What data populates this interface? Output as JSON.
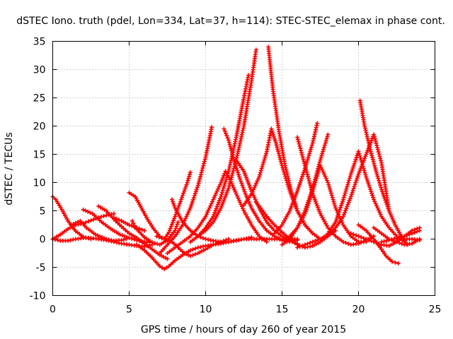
{
  "chart_data": {
    "type": "scatter",
    "title": "dSTEC Iono. truth (pdel, Lon=334, Lat=37, h=114): STEC-STEC_elemax in phase cont.",
    "xlabel": "GPS time / hours of day 260 of year 2015",
    "ylabel": "dSTEC  / TECUs",
    "xlim": [
      0,
      25
    ],
    "ylim": [
      -10,
      35
    ],
    "xticks": [
      0,
      5,
      10,
      15,
      20,
      25
    ],
    "yticks": [
      -10,
      -5,
      0,
      5,
      10,
      15,
      20,
      25,
      30,
      35
    ],
    "grid": true,
    "marker": "+",
    "color": "#ff0000",
    "series": [
      {
        "x": [
          0.0,
          0.2,
          0.6,
          1.0,
          1.5,
          2.0,
          2.5
        ],
        "y": [
          7.5,
          7.0,
          5.2,
          3.2,
          1.4,
          0.4,
          0.0
        ]
      },
      {
        "x": [
          0.0,
          0.5,
          1.0,
          1.5,
          2.0,
          2.5,
          3.0,
          3.5,
          4.0,
          4.5,
          5.0,
          5.5,
          6.0,
          6.5
        ],
        "y": [
          0.0,
          -0.3,
          -0.3,
          0.0,
          0.2,
          0.2,
          0.0,
          -0.2,
          -0.5,
          -0.8,
          -1.0,
          -1.2,
          -1.3,
          -1.0
        ]
      },
      {
        "x": [
          0.0,
          0.5,
          1.0,
          1.5,
          2.0,
          2.5,
          3.0,
          3.5,
          4.0
        ],
        "y": [
          0.0,
          0.8,
          1.8,
          2.5,
          2.8,
          3.3,
          3.8,
          4.2,
          4.5
        ]
      },
      {
        "x": [
          1.2,
          1.8,
          2.2,
          2.8,
          3.5,
          4.0,
          4.5,
          4.8
        ],
        "y": [
          2.5,
          3.2,
          2.0,
          0.8,
          0.0,
          -0.3,
          -0.2,
          0.0
        ]
      },
      {
        "x": [
          2.0,
          2.6,
          3.2,
          3.8,
          4.4,
          5.0,
          5.5,
          6.0,
          6.5
        ],
        "y": [
          5.2,
          4.5,
          3.0,
          1.8,
          0.8,
          0.2,
          -0.2,
          -0.5,
          -0.6
        ]
      },
      {
        "x": [
          3.0,
          3.5,
          4.0,
          4.5,
          5.0,
          5.5,
          6.0,
          6.5,
          7.0,
          7.5
        ],
        "y": [
          5.8,
          5.0,
          3.5,
          2.2,
          1.0,
          0.2,
          -0.8,
          -1.8,
          -2.8,
          -3.5
        ]
      },
      {
        "x": [
          4.0,
          4.5,
          5.0,
          5.5,
          6.0
        ],
        "y": [
          3.8,
          3.2,
          2.5,
          2.0,
          1.5
        ]
      },
      {
        "x": [
          5.2,
          5.4,
          6.0,
          6.5,
          7.0,
          7.5,
          8.0,
          8.2
        ],
        "y": [
          3.2,
          2.0,
          0.3,
          -0.6,
          -1.0,
          -0.2,
          1.5,
          3.0
        ]
      },
      {
        "x": [
          5.0,
          5.4,
          5.8,
          6.2,
          6.6,
          7.0,
          7.3,
          7.6,
          8.0,
          8.4,
          8.8,
          9.0
        ],
        "y": [
          8.2,
          7.5,
          5.5,
          3.5,
          1.8,
          0.5,
          0.0,
          1.2,
          4.0,
          7.0,
          10.0,
          11.8
        ]
      },
      {
        "x": [
          5.5,
          6.0,
          6.5,
          7.0,
          7.3,
          7.6,
          8.0,
          8.5,
          9.0,
          9.5,
          10.0,
          10.5,
          11.0,
          11.5,
          12.0,
          12.5,
          13.0,
          13.5,
          14.0,
          14.5,
          15.0,
          15.5,
          16.0
        ],
        "y": [
          -1.0,
          -2.0,
          -3.3,
          -4.8,
          -5.3,
          -4.8,
          -3.8,
          -2.8,
          -2.0,
          -1.5,
          -1.2,
          -1.0,
          -0.8,
          -0.5,
          -0.2,
          0.0,
          0.0,
          0.0,
          0.0,
          0.0,
          0.0,
          0.0,
          0.0
        ]
      },
      {
        "x": [
          7.0,
          7.5,
          8.0,
          8.5,
          9.0,
          9.5,
          10.0,
          10.4
        ],
        "y": [
          -2.5,
          -1.0,
          0.5,
          2.5,
          5.5,
          9.5,
          14.5,
          19.8
        ]
      },
      {
        "x": [
          7.8,
          8.0,
          8.5,
          9.0,
          9.5,
          10.0,
          10.5,
          11.0,
          11.5,
          12.0,
          12.5,
          13.0
        ],
        "y": [
          7.0,
          5.5,
          3.0,
          1.5,
          0.5,
          0.0,
          -0.3,
          -0.5,
          -0.5,
          -0.3,
          0.0,
          0.3
        ]
      },
      {
        "x": [
          6.8,
          7.3,
          7.8,
          8.2,
          8.6,
          9.0,
          9.5,
          10.0,
          10.5,
          11.0,
          11.5
        ],
        "y": [
          0.5,
          0.0,
          -0.5,
          -1.5,
          -2.5,
          -3.0,
          -2.5,
          -1.8,
          -1.0,
          -0.5,
          0.0
        ]
      },
      {
        "x": [
          7.5,
          8.0,
          8.5,
          9.0,
          9.5,
          10.0,
          10.5,
          11.0,
          11.3,
          11.6,
          12.0,
          12.5,
          13.0,
          13.5,
          14.0
        ],
        "y": [
          -2.5,
          -1.5,
          -0.5,
          0.5,
          2.0,
          4.0,
          7.0,
          10.0,
          12.0,
          10.5,
          8.0,
          5.0,
          2.5,
          0.5,
          -0.5
        ]
      },
      {
        "x": [
          9.0,
          9.5,
          10.0,
          10.5,
          11.0,
          11.5,
          12.0,
          12.5,
          12.8
        ],
        "y": [
          -0.5,
          0.5,
          2.0,
          4.0,
          7.5,
          12.0,
          18.0,
          25.0,
          29.0
        ]
      },
      {
        "x": [
          9.5,
          10.0,
          10.5,
          11.0,
          11.5,
          12.0,
          12.5,
          13.0,
          13.3
        ],
        "y": [
          0.5,
          1.5,
          3.0,
          5.5,
          9.0,
          14.0,
          20.0,
          28.0,
          33.5
        ]
      },
      {
        "x": [
          11.2,
          11.5,
          11.8,
          12.2,
          12.6,
          13.0,
          13.5,
          14.0,
          14.5,
          15.0,
          15.5,
          16.0
        ],
        "y": [
          19.5,
          17.5,
          14.5,
          11.0,
          8.0,
          5.5,
          3.2,
          1.5,
          0.5,
          -0.2,
          -0.5,
          -0.2
        ]
      },
      {
        "x": [
          12.0,
          12.5,
          13.0,
          13.5,
          14.0,
          14.5,
          15.0,
          15.5,
          16.0
        ],
        "y": [
          14.0,
          12.0,
          8.5,
          5.5,
          3.0,
          1.5,
          0.5,
          -0.3,
          -0.8
        ]
      },
      {
        "x": [
          12.5,
          13.0,
          13.5,
          14.0,
          14.3,
          14.6,
          15.0,
          15.5,
          16.0,
          16.5,
          17.0
        ],
        "y": [
          6.0,
          8.0,
          11.0,
          15.5,
          19.5,
          17.0,
          13.0,
          8.5,
          5.0,
          2.5,
          1.0
        ]
      },
      {
        "x": [
          14.1,
          14.4,
          14.8,
          15.2,
          15.6,
          16.0,
          16.5,
          17.0,
          17.5
        ],
        "y": [
          34.0,
          26.5,
          19.0,
          13.0,
          8.5,
          5.0,
          2.5,
          1.0,
          0.0
        ]
      },
      {
        "x": [
          13.3,
          13.6,
          14.0,
          14.5,
          15.0,
          15.5,
          16.0,
          16.5,
          17.0,
          17.5,
          18.0,
          18.5
        ],
        "y": [
          6.5,
          5.5,
          4.0,
          2.5,
          1.2,
          0.0,
          -1.0,
          -1.5,
          -1.2,
          -0.5,
          0.5,
          1.5
        ]
      },
      {
        "x": [
          14.5,
          15.0,
          15.5,
          16.0,
          16.5,
          17.0,
          17.3
        ],
        "y": [
          1.0,
          2.5,
          5.0,
          8.5,
          12.5,
          17.0,
          20.5
        ]
      },
      {
        "x": [
          15.0,
          15.5,
          16.0,
          16.5,
          17.0,
          17.5,
          18.0
        ],
        "y": [
          -1.0,
          0.0,
          2.0,
          5.0,
          9.0,
          14.0,
          18.5
        ]
      },
      {
        "x": [
          15.5,
          16.0,
          16.5,
          17.0,
          17.5,
          18.0,
          18.5,
          19.0,
          19.5,
          20.0,
          20.5
        ],
        "y": [
          0.5,
          2.0,
          4.5,
          8.5,
          13.0,
          10.0,
          5.5,
          2.5,
          0.5,
          -0.5,
          -0.5
        ]
      },
      {
        "x": [
          16.0,
          16.5,
          17.0,
          17.5,
          18.0,
          18.5,
          19.0,
          19.5,
          20.0,
          20.5,
          21.0
        ],
        "y": [
          18.0,
          13.0,
          8.0,
          4.5,
          2.0,
          0.5,
          -0.5,
          -1.0,
          -0.8,
          -0.2,
          0.5
        ]
      },
      {
        "x": [
          16.0,
          16.5,
          17.0,
          17.5,
          18.0,
          18.5,
          19.0,
          19.5,
          20.0,
          20.5,
          21.0,
          21.5,
          22.0
        ],
        "y": [
          -1.5,
          -1.0,
          -0.5,
          0.0,
          0.8,
          2.0,
          4.0,
          7.5,
          11.5,
          15.0,
          18.5,
          13.5,
          5.0
        ]
      },
      {
        "x": [
          18.0,
          18.5,
          19.0,
          19.5,
          20.0,
          20.5,
          21.0,
          21.5,
          22.0,
          22.5,
          23.0
        ],
        "y": [
          1.0,
          3.0,
          7.0,
          11.5,
          15.5,
          11.0,
          7.0,
          4.0,
          2.0,
          0.5,
          -0.5
        ]
      },
      {
        "x": [
          20.1,
          20.4,
          20.8,
          21.2,
          21.6,
          22.0,
          22.4,
          22.8,
          23.2
        ],
        "y": [
          24.5,
          20.0,
          15.5,
          11.5,
          8.0,
          5.0,
          2.5,
          0.5,
          -1.0
        ]
      },
      {
        "x": [
          19.5,
          20.0,
          20.5,
          21.0,
          21.5,
          22.0,
          22.5,
          23.0,
          23.5,
          24.0
        ],
        "y": [
          1.0,
          0.5,
          0.0,
          -0.5,
          -1.0,
          -1.2,
          -0.5,
          0.5,
          1.5,
          2.0
        ]
      },
      {
        "x": [
          20.0,
          20.5,
          21.0,
          21.5,
          21.8,
          22.2,
          22.6
        ],
        "y": [
          2.5,
          1.5,
          0.0,
          -1.8,
          -3.0,
          -4.0,
          -4.3
        ]
      },
      {
        "x": [
          21.0,
          21.5,
          22.0,
          22.5,
          23.0,
          23.5,
          24.0
        ],
        "y": [
          2.0,
          1.0,
          0.0,
          -0.5,
          -1.0,
          -0.8,
          0.0
        ]
      },
      {
        "x": [
          21.5,
          22.0,
          22.5,
          23.0,
          23.5,
          24.0
        ],
        "y": [
          -0.5,
          -0.2,
          0.2,
          0.5,
          1.0,
          1.5
        ]
      },
      {
        "x": [
          22.5,
          23.0,
          23.5,
          24.0
        ],
        "y": [
          0.0,
          0.0,
          0.0,
          -0.2
        ]
      }
    ]
  }
}
